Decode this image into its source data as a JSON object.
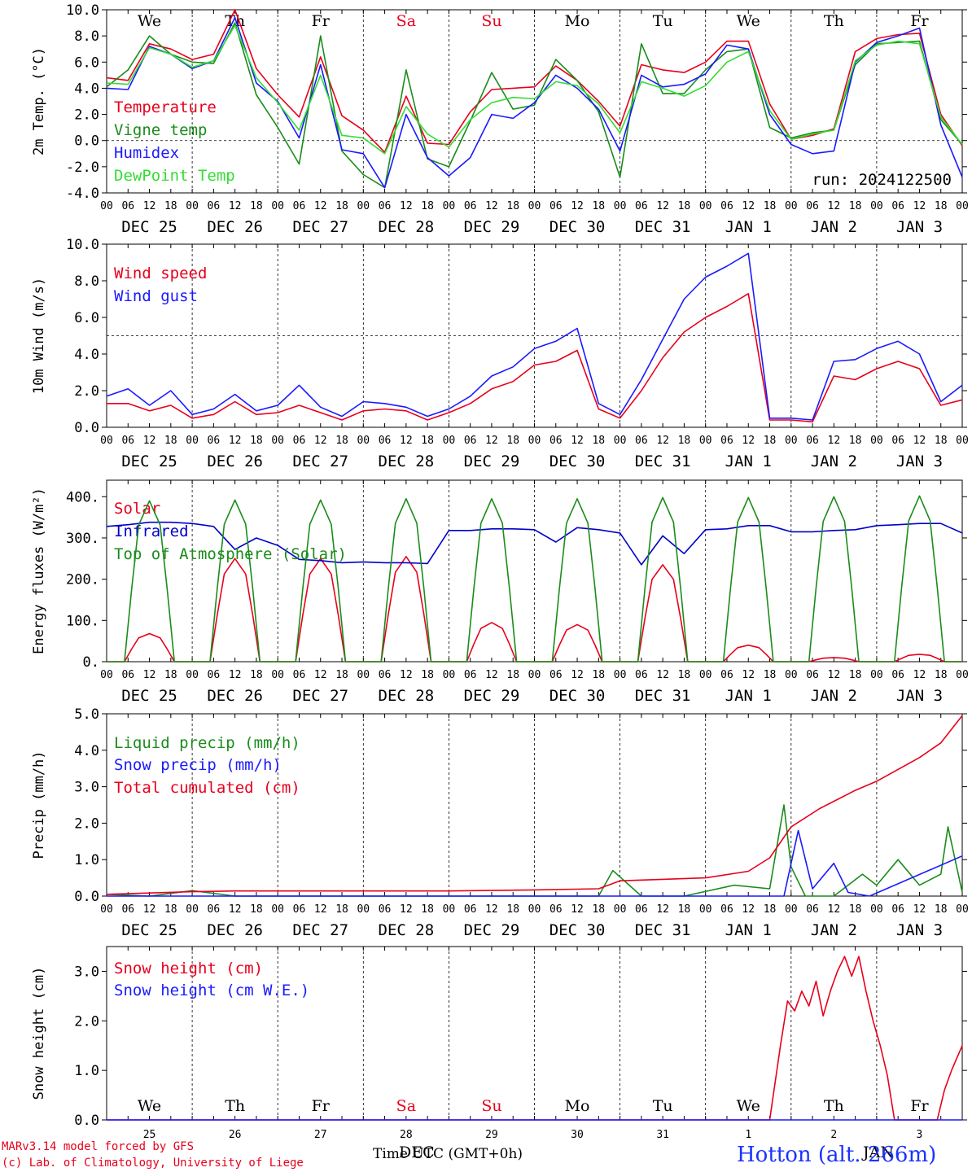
{
  "run_label": "run: 2024122500",
  "footer": {
    "model_line": "MARv3.14 model forced by GFS",
    "credit_line": "(c) Lab. of Climatology, University of Liege",
    "x_title": "Time UTC (GMT+0h)",
    "station": "Hotton (alt. 266m)"
  },
  "colors": {
    "temperature": "#e8001c",
    "vigne": "#1a8c1a",
    "humidex": "#1a1aff",
    "dewpoint": "#33dd33",
    "gust": "#1a1aff",
    "toa": "#1a8c1a",
    "infrared": "#0000cc"
  },
  "time_axis": {
    "hour_ticks": [
      "00",
      "06",
      "12",
      "18"
    ],
    "dates": [
      "DEC 25",
      "DEC 26",
      "DEC 27",
      "DEC 28",
      "DEC 29",
      "DEC 30",
      "DEC 31",
      "JAN  1",
      "JAN  2",
      "JAN  3"
    ],
    "days": [
      {
        "label": "We",
        "color": "#000000"
      },
      {
        "label": "Th",
        "color": "#000000"
      },
      {
        "label": "Fr",
        "color": "#000000"
      },
      {
        "label": "Sa",
        "color": "#e8001c"
      },
      {
        "label": "Su",
        "color": "#e8001c"
      },
      {
        "label": "Mo",
        "color": "#000000"
      },
      {
        "label": "Tu",
        "color": "#000000"
      },
      {
        "label": "We",
        "color": "#000000"
      },
      {
        "label": "Th",
        "color": "#000000"
      },
      {
        "label": "Fr",
        "color": "#000000"
      }
    ],
    "day_numbers": [
      "25",
      "26",
      "27",
      "28",
      "29",
      "30",
      "31",
      "1",
      "2",
      "3"
    ],
    "bottom_date_labels": [
      "DEC",
      "JAN"
    ]
  },
  "chart_data": [
    {
      "type": "line",
      "ylabel": "2m Temp. (°C)",
      "ylim": [
        -4,
        10
      ],
      "yticks": [
        "-4.0",
        "-2.0",
        "0.0",
        "2.0",
        "4.0",
        "6.0",
        "8.0",
        "10.0"
      ],
      "ytick_values": [
        -4,
        -2,
        0,
        2,
        4,
        6,
        8,
        10
      ],
      "ref_line": 0,
      "x_unit": "hours since 2024-12-25 00 UTC",
      "series": [
        {
          "name": "Temperature",
          "color": "#e8001c",
          "x": [
            0,
            6,
            12,
            18,
            24,
            30,
            36,
            42,
            48,
            54,
            60,
            66,
            72,
            78,
            84,
            90,
            96,
            102,
            108,
            114,
            120,
            126,
            132,
            138,
            144,
            150,
            156,
            162,
            168,
            174,
            180,
            186,
            192,
            198,
            204,
            210,
            216,
            222,
            228,
            234,
            240
          ],
          "values": [
            4.8,
            4.6,
            7.4,
            7.0,
            6.2,
            6.6,
            10.0,
            5.5,
            3.5,
            1.8,
            6.4,
            1.9,
            0.8,
            -0.9,
            3.4,
            -0.2,
            -0.3,
            2.2,
            3.9,
            4.0,
            4.1,
            5.7,
            4.6,
            3.0,
            1.1,
            5.8,
            5.4,
            5.2,
            6.0,
            7.6,
            7.6,
            2.8,
            0.1,
            0.4,
            0.9,
            6.8,
            7.8,
            8.1,
            8.2,
            2.0,
            -0.4
          ]
        },
        {
          "name": "Vigne temp",
          "color": "#1a8c1a",
          "x": [
            0,
            6,
            12,
            18,
            24,
            30,
            36,
            42,
            48,
            54,
            60,
            66,
            72,
            78,
            84,
            90,
            96,
            102,
            108,
            114,
            120,
            126,
            132,
            138,
            144,
            150,
            156,
            162,
            168,
            174,
            180,
            186,
            192,
            198,
            204,
            210,
            216,
            222,
            228,
            234,
            240
          ],
          "values": [
            4.1,
            5.4,
            8.0,
            6.6,
            6.0,
            5.9,
            9.0,
            3.5,
            1.0,
            -1.8,
            8.0,
            -0.8,
            -2.6,
            -3.6,
            5.4,
            -1.4,
            -2.0,
            1.5,
            5.2,
            2.4,
            2.7,
            6.2,
            4.6,
            2.2,
            -2.8,
            7.4,
            3.6,
            3.6,
            5.4,
            6.8,
            7.0,
            1.0,
            0.2,
            0.6,
            0.8,
            5.8,
            7.4,
            7.5,
            7.6,
            1.6,
            -0.3
          ]
        },
        {
          "name": "Humidex",
          "color": "#1a1aff",
          "x": [
            0,
            6,
            12,
            18,
            24,
            30,
            36,
            42,
            48,
            54,
            60,
            66,
            72,
            78,
            84,
            90,
            96,
            102,
            108,
            114,
            120,
            126,
            132,
            138,
            144,
            150,
            156,
            162,
            168,
            174,
            180,
            186,
            192,
            198,
            204,
            210,
            216,
            222,
            228,
            234,
            240
          ],
          "values": [
            4.0,
            3.9,
            7.2,
            6.6,
            5.5,
            6.1,
            9.4,
            4.4,
            3.0,
            0.2,
            5.8,
            -0.7,
            -1.0,
            -3.6,
            2.0,
            -1.3,
            -2.7,
            -1.3,
            2.0,
            1.7,
            2.9,
            5.0,
            4.0,
            2.4,
            -0.8,
            5.0,
            4.1,
            4.3,
            5.1,
            7.3,
            7.0,
            2.0,
            -0.3,
            -1.0,
            -0.8,
            6.0,
            7.5,
            8.0,
            8.6,
            1.2,
            -2.8
          ]
        },
        {
          "name": "DewPoint Temp",
          "color": "#33dd33",
          "x": [
            0,
            6,
            12,
            18,
            24,
            30,
            36,
            42,
            48,
            54,
            60,
            66,
            72,
            78,
            84,
            90,
            96,
            102,
            108,
            114,
            120,
            126,
            132,
            138,
            144,
            150,
            156,
            162,
            168,
            174,
            180,
            186,
            192,
            198,
            204,
            210,
            216,
            222,
            228,
            234,
            240
          ],
          "values": [
            4.4,
            4.3,
            7.1,
            6.6,
            5.6,
            6.1,
            8.8,
            4.8,
            2.9,
            0.8,
            5.0,
            0.4,
            0.2,
            -1.0,
            2.6,
            0.5,
            -0.5,
            1.6,
            2.9,
            3.3,
            3.2,
            4.5,
            4.2,
            2.8,
            0.6,
            4.5,
            4.0,
            3.4,
            4.2,
            6.0,
            6.8,
            2.3,
            0.1,
            0.5,
            0.8,
            6.1,
            7.3,
            7.6,
            7.4,
            1.8,
            -0.3
          ]
        }
      ]
    },
    {
      "type": "line",
      "ylabel": "10m Wind (m/s)",
      "ylim": [
        0,
        10
      ],
      "yticks": [
        "0.0",
        "2.0",
        "4.0",
        "6.0",
        "8.0",
        "10.0"
      ],
      "ytick_values": [
        0,
        2,
        4,
        6,
        8,
        10
      ],
      "ref_line": 5,
      "x_unit": "hours since 2024-12-25 00 UTC",
      "series": [
        {
          "name": "Wind speed",
          "color": "#e8001c",
          "x": [
            0,
            6,
            12,
            18,
            24,
            30,
            36,
            42,
            48,
            54,
            60,
            66,
            72,
            78,
            84,
            90,
            96,
            102,
            108,
            114,
            120,
            126,
            132,
            138,
            144,
            150,
            156,
            162,
            168,
            174,
            180,
            186,
            192,
            198,
            204,
            210,
            216,
            222,
            228,
            234,
            240
          ],
          "values": [
            1.3,
            1.3,
            0.9,
            1.2,
            0.5,
            0.7,
            1.4,
            0.7,
            0.8,
            1.2,
            0.8,
            0.4,
            0.9,
            1.0,
            0.9,
            0.4,
            0.8,
            1.3,
            2.1,
            2.5,
            3.4,
            3.6,
            4.2,
            1.0,
            0.5,
            2.0,
            3.8,
            5.2,
            6.0,
            6.6,
            7.3,
            0.4,
            0.4,
            0.3,
            2.8,
            2.6,
            3.2,
            3.6,
            3.2,
            1.2,
            1.5
          ]
        },
        {
          "name": "Wind gust",
          "color": "#1a1aff",
          "x": [
            0,
            6,
            12,
            18,
            24,
            30,
            36,
            42,
            48,
            54,
            60,
            66,
            72,
            78,
            84,
            90,
            96,
            102,
            108,
            114,
            120,
            126,
            132,
            138,
            144,
            150,
            156,
            162,
            168,
            174,
            180,
            186,
            192,
            198,
            204,
            210,
            216,
            222,
            228,
            234,
            240
          ],
          "values": [
            1.7,
            2.1,
            1.2,
            2.0,
            0.7,
            1.0,
            1.8,
            0.9,
            1.2,
            2.3,
            1.1,
            0.6,
            1.4,
            1.3,
            1.1,
            0.6,
            1.0,
            1.7,
            2.8,
            3.3,
            4.3,
            4.7,
            5.4,
            1.3,
            0.7,
            2.6,
            4.8,
            7.0,
            8.2,
            8.8,
            9.5,
            0.5,
            0.5,
            0.4,
            3.6,
            3.7,
            4.3,
            4.7,
            4.0,
            1.4,
            2.3
          ]
        }
      ]
    },
    {
      "type": "line",
      "ylabel": "Energy fluxes (W/m²)",
      "ylim": [
        0,
        440
      ],
      "yticks": [
        "0.",
        "100.",
        "200.",
        "300.",
        "400."
      ],
      "ytick_values": [
        0,
        100,
        200,
        300,
        400
      ],
      "x_unit": "hours since 2024-12-25 00 UTC",
      "series": [
        {
          "name": "Solar",
          "color": "#e8001c",
          "peak_hours": [
            12,
            36,
            60,
            84,
            108,
            132,
            156,
            180,
            204,
            228
          ],
          "values": [
            68,
            250,
            250,
            255,
            95,
            90,
            235,
            40,
            10,
            18
          ]
        },
        {
          "name": "Infrared",
          "color": "#0000cc",
          "x": [
            0,
            6,
            12,
            18,
            24,
            30,
            36,
            42,
            48,
            54,
            60,
            66,
            72,
            78,
            84,
            90,
            96,
            102,
            108,
            114,
            120,
            126,
            132,
            138,
            144,
            150,
            156,
            162,
            168,
            174,
            180,
            186,
            192,
            198,
            204,
            210,
            216,
            222,
            228,
            234,
            240
          ],
          "values": [
            328,
            332,
            338,
            338,
            335,
            328,
            272,
            300,
            282,
            248,
            245,
            240,
            242,
            240,
            240,
            238,
            318,
            318,
            322,
            322,
            320,
            290,
            325,
            320,
            312,
            235,
            305,
            262,
            320,
            322,
            330,
            330,
            315,
            315,
            318,
            320,
            330,
            332,
            335,
            335,
            312
          ]
        },
        {
          "name": "Top of Atmosphere (Solar)",
          "color": "#1a8c1a",
          "peak_hours": [
            12,
            36,
            60,
            84,
            108,
            132,
            156,
            180,
            204,
            228
          ],
          "values": [
            390,
            392,
            392,
            395,
            395,
            395,
            398,
            398,
            400,
            402
          ]
        }
      ]
    },
    {
      "type": "line",
      "ylabel": "Precip (mm/h)",
      "ylim": [
        0,
        5
      ],
      "yticks": [
        "0.0",
        "1.0",
        "2.0",
        "3.0",
        "4.0",
        "5.0"
      ],
      "ytick_values": [
        0,
        1,
        2,
        3,
        4,
        5
      ],
      "x_unit": "hours since 2024-12-25 00 UTC",
      "series": [
        {
          "name": "Liquid precip (mm/h)",
          "color": "#1a8c1a",
          "x": [
            0,
            12,
            24,
            36,
            48,
            120,
            138,
            142,
            150,
            162,
            176,
            186,
            190,
            192,
            196,
            204,
            212,
            216,
            222,
            228,
            234,
            236,
            240
          ],
          "values": [
            0.05,
            0.0,
            0.15,
            0.0,
            0.0,
            0.0,
            0.0,
            0.7,
            0.0,
            0.0,
            0.3,
            0.2,
            2.5,
            0.8,
            0.0,
            0.0,
            0.6,
            0.3,
            1.0,
            0.3,
            0.6,
            1.9,
            0.1
          ]
        },
        {
          "name": "Snow precip (mm/h)",
          "color": "#1a1aff",
          "x": [
            0,
            180,
            190,
            194,
            198,
            204,
            208,
            214,
            240
          ],
          "values": [
            0.0,
            0.0,
            0.0,
            1.8,
            0.2,
            0.9,
            0.1,
            0.0,
            1.1
          ]
        },
        {
          "name": "Total cumulated (cm)",
          "color": "#e8001c",
          "x": [
            0,
            24,
            36,
            96,
            120,
            138,
            144,
            156,
            168,
            180,
            186,
            192,
            200,
            210,
            216,
            228,
            234,
            240
          ],
          "values": [
            0.05,
            0.12,
            0.14,
            0.14,
            0.17,
            0.2,
            0.42,
            0.46,
            0.5,
            0.68,
            1.05,
            1.9,
            2.4,
            2.9,
            3.15,
            3.8,
            4.2,
            4.95
          ]
        }
      ]
    },
    {
      "type": "line",
      "ylabel": "Snow height (cm)",
      "ylim": [
        0,
        3.5
      ],
      "yticks": [
        "0.0",
        "1.0",
        "2.0",
        "3.0"
      ],
      "ytick_values": [
        0,
        1,
        2,
        3
      ],
      "x_unit": "hours since 2024-12-25 00 UTC",
      "series": [
        {
          "name": "Snow height (cm)",
          "color": "#e8001c",
          "x": [
            0,
            186,
            189,
            191,
            193,
            195,
            197,
            199,
            201,
            203,
            205,
            207,
            209,
            211,
            213,
            215,
            217,
            219,
            221,
            226,
            233,
            235,
            237,
            240
          ],
          "values": [
            0,
            0,
            1.5,
            2.4,
            2.2,
            2.6,
            2.3,
            2.8,
            2.1,
            2.6,
            3.0,
            3.3,
            2.9,
            3.3,
            2.6,
            2.0,
            1.5,
            0.9,
            0,
            0,
            0,
            0.6,
            1.0,
            1.5
          ]
        },
        {
          "name": "Snow height (cm W.E.)",
          "color": "#1a1aff",
          "x": [
            0,
            240
          ],
          "values": [
            0,
            0
          ]
        }
      ]
    }
  ]
}
